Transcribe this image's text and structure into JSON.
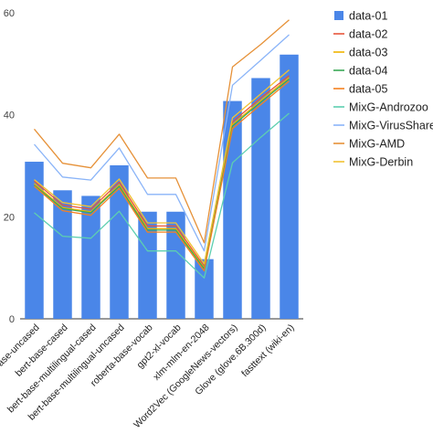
{
  "chart_data": {
    "type": "bar",
    "title": "",
    "xlabel": "",
    "ylabel": "",
    "ylim": [
      0,
      60
    ],
    "yticks": [
      0,
      20,
      40,
      60
    ],
    "grid": false,
    "legend_position": "right",
    "categories": [
      "bert-base-uncased",
      "bert-base-cased",
      "bert-base-multilingual-cased",
      "bert-base-multilingual-uncased",
      "roberta-base-vocab",
      "gpt2-xl-vocab",
      "xlm-mlm-en-2048",
      "Word2Vec (GoogleNews-vectors)",
      "Glove (glove.6B.300d)",
      "fasttext (wiki-en)"
    ],
    "bar_series": {
      "name": "data-01",
      "color": "#4a86e8",
      "values": [
        30.8,
        25.2,
        24.1,
        30.1,
        21.0,
        21.0,
        11.7,
        42.7,
        47.2,
        51.8
      ]
    },
    "line_series": [
      {
        "name": "data-02",
        "color": "#e8553a",
        "values": [
          27.0,
          22.3,
          21.5,
          26.8,
          18.2,
          18.2,
          10.3,
          38.6,
          43.3,
          47.7
        ]
      },
      {
        "name": "data-03",
        "color": "#f0b400",
        "values": [
          26.5,
          21.8,
          21.0,
          26.3,
          17.7,
          17.7,
          10.0,
          38.1,
          42.8,
          47.3
        ]
      },
      {
        "name": "data-04",
        "color": "#3aa856",
        "values": [
          26.2,
          21.6,
          20.8,
          26.0,
          17.4,
          17.4,
          9.8,
          37.8,
          42.5,
          47.0
        ]
      },
      {
        "name": "data-05",
        "color": "#f5811f",
        "values": [
          26.0,
          21.2,
          20.3,
          25.6,
          17.0,
          17.0,
          9.4,
          37.3,
          42.0,
          46.6
        ]
      },
      {
        "name": "MixG-Androzoo",
        "color": "#5dcfb0",
        "values": [
          20.8,
          16.2,
          15.8,
          21.1,
          13.3,
          13.3,
          8.0,
          30.6,
          35.6,
          40.3
        ]
      },
      {
        "name": "MixG-VirusShare",
        "color": "#8ab4f8",
        "values": [
          34.2,
          27.8,
          27.2,
          33.5,
          24.4,
          24.4,
          13.3,
          45.8,
          50.7,
          55.7
        ]
      },
      {
        "name": "MixG-AMD",
        "color": "#e69138",
        "values": [
          37.2,
          30.5,
          29.6,
          36.2,
          27.6,
          27.6,
          14.9,
          49.4,
          53.8,
          58.6
        ]
      },
      {
        "name": "MixG-Derbin",
        "color": "#f1c232",
        "values": [
          27.3,
          22.8,
          22.0,
          27.4,
          18.8,
          18.8,
          10.8,
          39.4,
          44.1,
          48.8
        ]
      }
    ]
  }
}
